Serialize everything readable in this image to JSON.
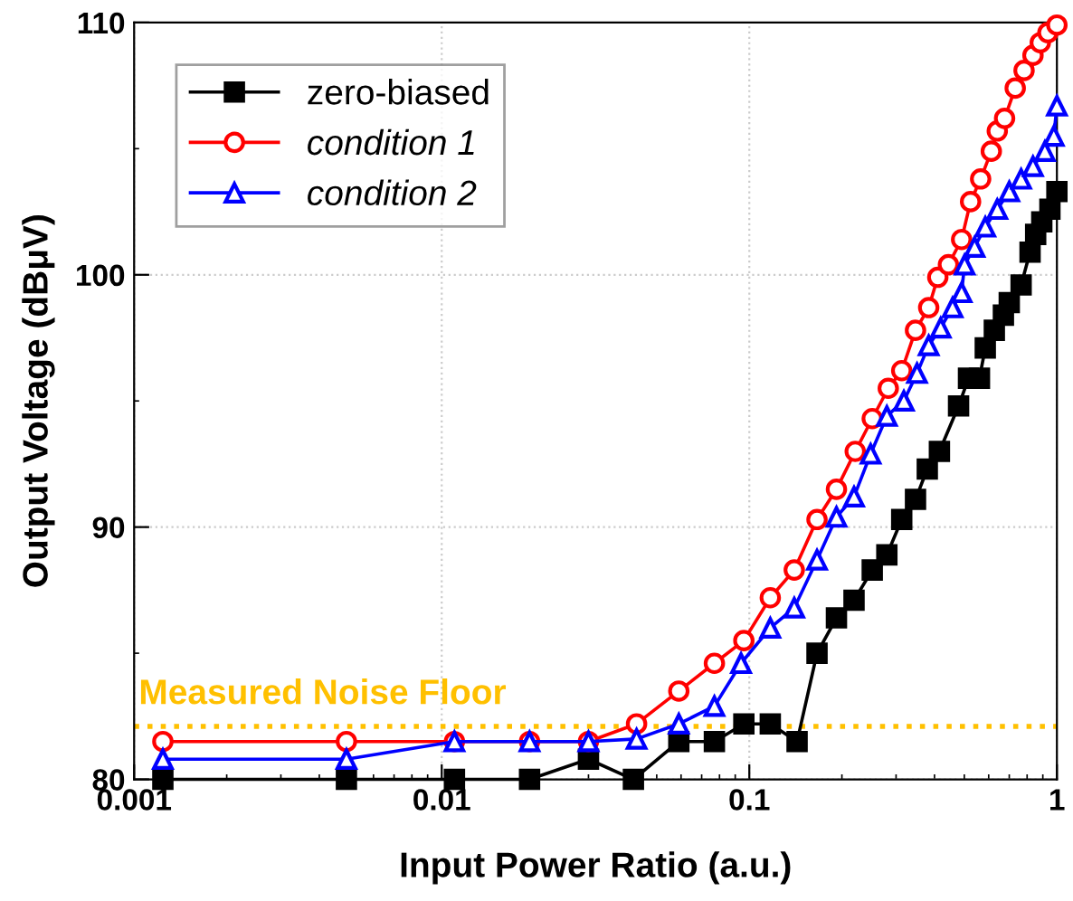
{
  "chart_data": {
    "type": "line",
    "xlabel": "Input Power Ratio (a.u.)",
    "ylabel": "Output Voltage (dBμV)",
    "log": "x",
    "xlim": [
      0.001,
      1
    ],
    "xticks": [
      0.001,
      0.01,
      0.1,
      1
    ],
    "ylim": [
      80,
      110
    ],
    "yticks": [
      80,
      90,
      100,
      110
    ],
    "grid": true,
    "legend": "top left",
    "line_style": "solid",
    "series": [
      {
        "name": "zero-biased",
        "color": "#000000",
        "marker": "square",
        "x": [
          0.00124,
          0.0049,
          0.011,
          0.0193,
          0.03,
          0.042,
          0.059,
          0.077,
          0.096,
          0.117,
          0.143,
          0.166,
          0.192,
          0.219,
          0.251,
          0.28,
          0.313,
          0.347,
          0.379,
          0.415,
          0.479,
          0.516,
          0.56,
          0.585,
          0.626,
          0.67,
          0.7,
          0.765,
          0.818,
          0.853,
          0.893,
          0.949,
          1.0
        ],
        "values": [
          80,
          80,
          80,
          80,
          80.8,
          80,
          81.5,
          81.5,
          82.2,
          82.2,
          81.5,
          85.0,
          86.4,
          87.1,
          88.3,
          88.9,
          90.3,
          91.1,
          92.3,
          93.0,
          94.8,
          95.9,
          95.9,
          97.1,
          97.8,
          98.4,
          98.9,
          99.6,
          100.9,
          101.6,
          102.1,
          102.6,
          103.3
        ]
      },
      {
        "name": "condition 1",
        "color": "#ff0000",
        "marker": "circle",
        "x": [
          0.00124,
          0.0049,
          0.011,
          0.0193,
          0.03,
          0.043,
          0.059,
          0.077,
          0.096,
          0.117,
          0.14,
          0.166,
          0.192,
          0.221,
          0.251,
          0.283,
          0.313,
          0.347,
          0.383,
          0.41,
          0.444,
          0.49,
          0.524,
          0.565,
          0.612,
          0.64,
          0.676,
          0.732,
          0.782,
          0.836,
          0.883,
          0.935,
          1.0
        ],
        "values": [
          81.5,
          81.5,
          81.5,
          81.5,
          81.5,
          82.2,
          83.5,
          84.6,
          85.5,
          87.2,
          88.3,
          90.3,
          91.5,
          93.0,
          94.3,
          95.5,
          96.2,
          97.8,
          98.7,
          99.9,
          100.4,
          101.4,
          102.9,
          103.8,
          104.9,
          105.7,
          106.2,
          107.4,
          108.1,
          108.7,
          109.2,
          109.6,
          109.9
        ]
      },
      {
        "name": "condition 2",
        "color": "#0000ff",
        "marker": "triangle",
        "x": [
          0.00124,
          0.0049,
          0.011,
          0.0193,
          0.03,
          0.043,
          0.059,
          0.077,
          0.094,
          0.117,
          0.14,
          0.166,
          0.192,
          0.219,
          0.248,
          0.28,
          0.318,
          0.351,
          0.383,
          0.419,
          0.458,
          0.49,
          0.501,
          0.54,
          0.585,
          0.64,
          0.7,
          0.765,
          0.836,
          0.914,
          0.977,
          1.0
        ],
        "values": [
          80.8,
          80.8,
          81.5,
          81.5,
          81.5,
          81.6,
          82.2,
          82.9,
          84.6,
          86.0,
          86.8,
          88.7,
          90.4,
          91.2,
          92.9,
          94.4,
          95.0,
          96.1,
          97.2,
          97.9,
          98.7,
          99.3,
          100.4,
          101.1,
          101.9,
          102.6,
          103.3,
          103.8,
          104.3,
          104.9,
          105.5,
          106.7
        ]
      }
    ],
    "ref_lines": [
      {
        "axis": "y",
        "value": 82.1,
        "label": "Measured Noise Floor",
        "color": "#ffc000",
        "line_style": "dotted"
      }
    ]
  }
}
